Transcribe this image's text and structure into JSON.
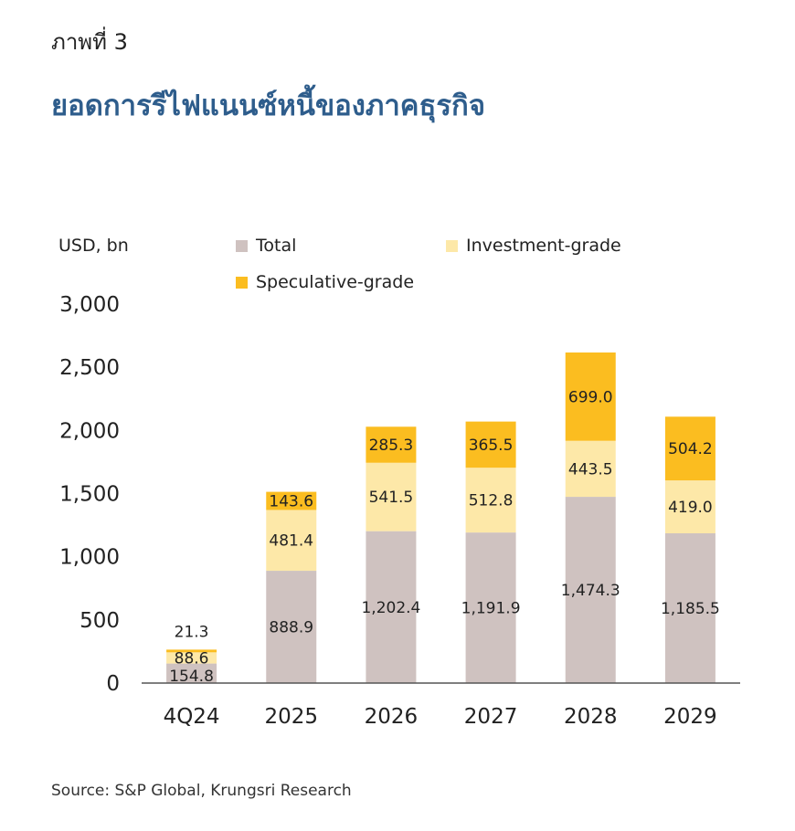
{
  "header": {
    "figure_label": "ภาพที่ 3",
    "title": "ยอดการรีไฟแนนซ์หนี้ของภาคธุรกิจ"
  },
  "source": "Source: S&P Global, Krungsri Research",
  "colors": {
    "total": "#cfc2c0",
    "investment": "#fde8a8",
    "speculative": "#fbbd20"
  },
  "chart_data": {
    "type": "bar",
    "stacked": true,
    "unit_label": "USD, bn",
    "categories": [
      "4Q24",
      "2025",
      "2026",
      "2027",
      "2028",
      "2029"
    ],
    "ylim": [
      0,
      3000
    ],
    "yticks": [
      0,
      500,
      1000,
      1500,
      2000,
      2500,
      3000
    ],
    "ytick_labels": [
      "0",
      "500",
      "1,000",
      "1,500",
      "2,000",
      "2,500",
      "3,000"
    ],
    "legend_position": "top",
    "series": [
      {
        "name": "Total",
        "values": [
          154.8,
          888.9,
          1202.4,
          1191.9,
          1474.3,
          1185.5
        ],
        "labels": [
          "154.8",
          "888.9",
          "1,202.4",
          "1,191.9",
          "1,474.3",
          "1,185.5"
        ]
      },
      {
        "name": "Investment-grade",
        "values": [
          88.6,
          481.4,
          541.5,
          512.8,
          443.5,
          419.0
        ],
        "labels": [
          "88.6",
          "481.4",
          "541.5",
          "512.8",
          "443.5",
          "419.0"
        ]
      },
      {
        "name": "Speculative-grade",
        "values": [
          21.3,
          143.6,
          285.3,
          365.5,
          699.0,
          504.2
        ],
        "labels": [
          "21.3",
          "143.6",
          "285.3",
          "365.5",
          "699.0",
          "504.2"
        ]
      }
    ]
  }
}
